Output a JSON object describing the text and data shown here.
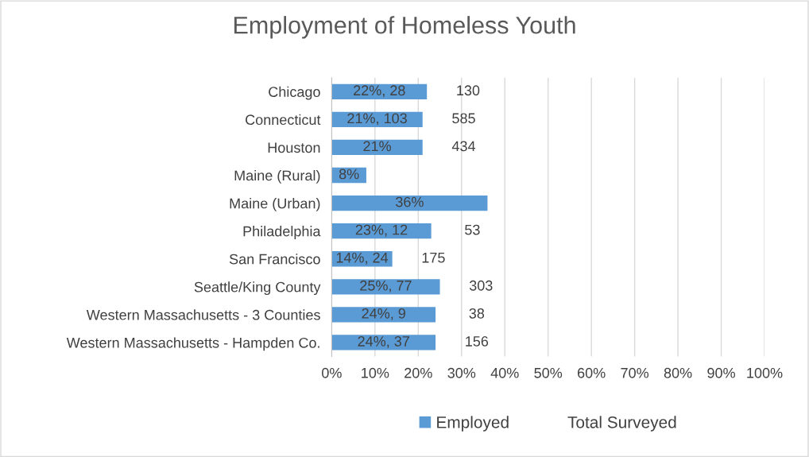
{
  "chart_data": {
    "type": "bar",
    "orientation": "horizontal",
    "title": "Employment of Homeless Youth",
    "categories": [
      "Chicago",
      "Connecticut",
      "Houston",
      "Maine (Rural)",
      "Maine (Urban)",
      "Philadelphia",
      "San Francisco",
      "Seattle/King County",
      "Western Massachusetts - 3 Counties",
      "Western Massachusetts - Hampden Co."
    ],
    "series": [
      {
        "name": "Employed",
        "color": "#5b9bd5",
        "values": [
          22,
          21,
          21,
          8,
          36,
          23,
          14,
          25,
          24,
          24
        ],
        "value_labels": [
          "22%, 28",
          "21%, 103",
          "21%",
          "8%",
          "36%",
          "23%, 12",
          "14%, 24",
          "25%, 77",
          "24%, 9",
          "24%, 37"
        ]
      },
      {
        "name": "Total Surveyed",
        "values": [
          null,
          null,
          null,
          null,
          null,
          null,
          null,
          null,
          null,
          null
        ],
        "value_labels": [
          "130",
          "585",
          "434",
          null,
          null,
          "53",
          "175",
          "303",
          "38",
          "156"
        ]
      }
    ],
    "xlim": [
      0,
      100
    ],
    "xticks": [
      {
        "value": 0,
        "label": "0%"
      },
      {
        "value": 10,
        "label": "10%"
      },
      {
        "value": 20,
        "label": "20%"
      },
      {
        "value": 30,
        "label": "30%"
      },
      {
        "value": 40,
        "label": "40%"
      },
      {
        "value": 50,
        "label": "50%"
      },
      {
        "value": 60,
        "label": "60%"
      },
      {
        "value": 70,
        "label": "70%"
      },
      {
        "value": 80,
        "label": "80%"
      },
      {
        "value": 90,
        "label": "90%"
      },
      {
        "value": 100,
        "label": "100%"
      }
    ],
    "grid": "x",
    "legend": "bottom"
  }
}
